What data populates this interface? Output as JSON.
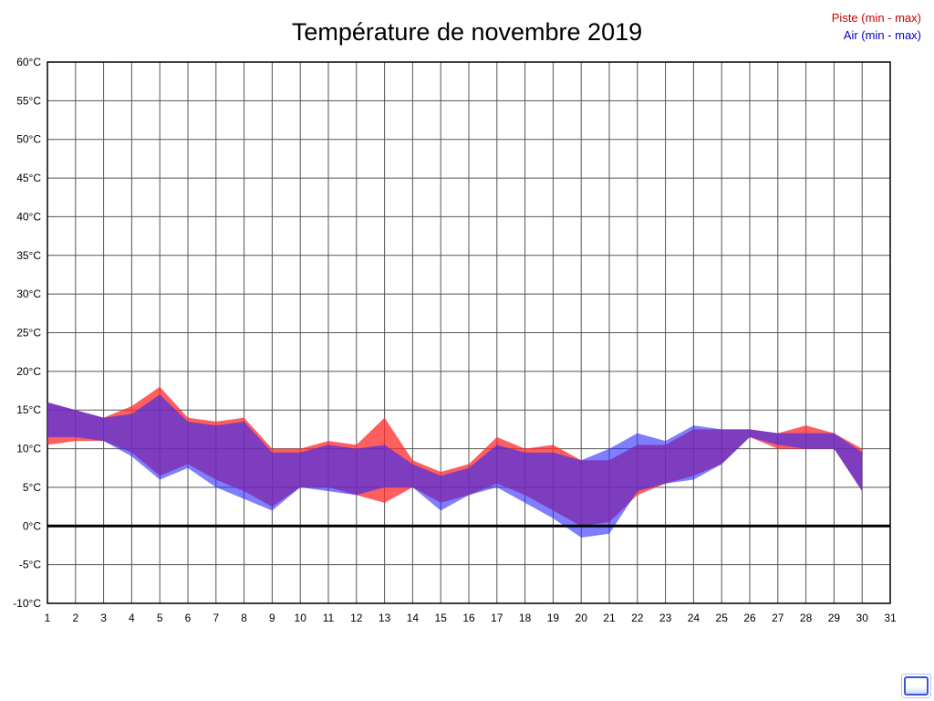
{
  "title": "Température de novembre 2019",
  "legend": {
    "piste": {
      "label": "Piste (min - max)",
      "color": "#cc0000"
    },
    "air": {
      "label": "Air (min - max)",
      "color": "#0000cc"
    }
  },
  "chart_data": {
    "type": "area",
    "subtype": "min-max-range-bands",
    "title": "Température de novembre 2019",
    "x_range": [
      1,
      31
    ],
    "y_range": [
      -10,
      60
    ],
    "y_tick_suffix": "°C",
    "y_ticks": [
      60,
      55,
      50,
      45,
      40,
      35,
      30,
      25,
      20,
      15,
      10,
      5,
      0,
      -5,
      -10
    ],
    "x_ticks": [
      1,
      2,
      3,
      4,
      5,
      6,
      7,
      8,
      9,
      10,
      11,
      12,
      13,
      14,
      15,
      16,
      17,
      18,
      19,
      20,
      21,
      22,
      23,
      24,
      25,
      26,
      27,
      28,
      29,
      30,
      31
    ],
    "zero_line": 0,
    "grid": true,
    "days": [
      1,
      2,
      3,
      4,
      5,
      6,
      7,
      8,
      9,
      10,
      11,
      12,
      13,
      14,
      15,
      16,
      17,
      18,
      19,
      20,
      21,
      22,
      23,
      24,
      25,
      26,
      27,
      28,
      29,
      30
    ],
    "series": [
      {
        "name": "Piste (min - max)",
        "fill": "rgba(255,40,40,0.75)",
        "min": [
          10.5,
          11,
          11,
          9.5,
          6.5,
          8,
          6,
          4.5,
          2.5,
          5,
          5,
          4,
          3,
          5,
          3,
          4,
          5.5,
          4,
          2,
          0,
          0.5,
          4,
          5.5,
          6.5,
          8,
          11.5,
          10,
          10,
          10,
          4.5
        ],
        "max": [
          16,
          15,
          14,
          15.5,
          18,
          14,
          13.5,
          14,
          10,
          10,
          11,
          10.5,
          14,
          8.5,
          7,
          8,
          11.5,
          10,
          10.5,
          8.5,
          8.5,
          10.5,
          10.5,
          12.5,
          12.5,
          12.5,
          12,
          13,
          12,
          10
        ]
      },
      {
        "name": "Air (min - max)",
        "fill": "rgba(40,40,255,0.6)",
        "min": [
          11.5,
          11.5,
          11,
          9,
          6,
          7.5,
          5,
          3.5,
          2,
          5,
          4.5,
          4,
          5,
          5,
          2,
          4,
          5,
          3,
          1,
          -1.5,
          -1,
          4.5,
          5.5,
          6,
          8,
          11.5,
          10.5,
          10,
          10,
          4.5
        ],
        "max": [
          16,
          15,
          14,
          14.5,
          17,
          13.5,
          13,
          13.5,
          9.5,
          9.5,
          10.5,
          10,
          10.5,
          8,
          6.5,
          7.5,
          10.5,
          9.5,
          9.5,
          8.5,
          10,
          12,
          11,
          13,
          12.5,
          12.5,
          12,
          12,
          12,
          9.5
        ]
      }
    ]
  }
}
